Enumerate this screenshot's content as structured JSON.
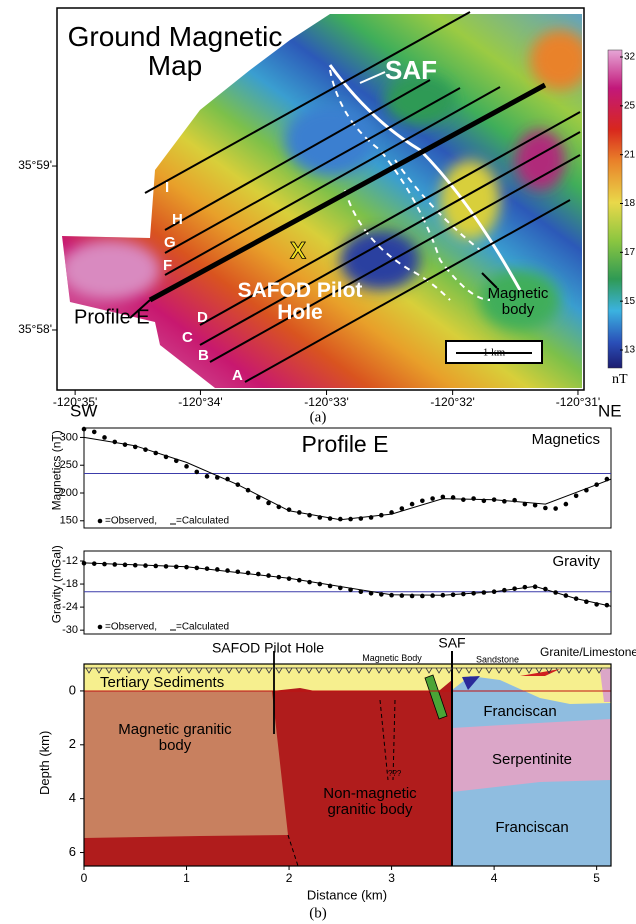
{
  "chart_data": [
    {
      "type": "map",
      "title": "Ground Magnetic Map",
      "xlim": [
        -120.5857,
        -120.5159
      ],
      "xticks": [
        {
          "value": -120.5833,
          "label": "-120°35'"
        },
        {
          "value": -120.5667,
          "label": "-120°34'"
        },
        {
          "value": -120.55,
          "label": "-120°33'"
        },
        {
          "value": -120.5333,
          "label": "-120°32'"
        },
        {
          "value": -120.5167,
          "label": "-120°31'"
        }
      ],
      "ylim": [
        35.96057,
        35.99939
      ],
      "yticks": [
        {
          "value": 35.98333,
          "label": "35°59'"
        },
        {
          "value": 35.96667,
          "label": "35°58'"
        }
      ],
      "colorbar": {
        "ticks": [
          32,
          25,
          21,
          18,
          17,
          15,
          13
        ],
        "unit": "nT"
      },
      "profile_labels": [
        "A",
        "B",
        "C",
        "D",
        "F",
        "G",
        "H",
        "I"
      ],
      "annotations": {
        "saf": "SAF",
        "marker": "X",
        "pilot_hole": "SAFOD Pilot Hole",
        "magnetic_body": "Magnetic body",
        "profile_e": "Profile E"
      },
      "scale_bar": "1 km",
      "panel_label": "(a)"
    },
    {
      "type": "line",
      "title": "Profile E",
      "label": "Magnetics",
      "y_label": "Magnetics (nT)",
      "direction_labels": [
        "SW",
        "NE"
      ],
      "xlim": [
        0,
        5.14
      ],
      "ylim": [
        137,
        317
      ],
      "yticks": [
        150,
        200,
        250,
        300
      ],
      "reference_line": 235,
      "reference_color": "#3c3caa",
      "series": [
        {
          "name": "=Observed,",
          "color": "#000000",
          "style": "markers",
          "x": [
            0,
            0.1,
            0.2,
            0.3,
            0.4,
            0.5,
            0.6,
            0.7,
            0.8,
            0.9,
            1.0,
            1.1,
            1.2,
            1.3,
            1.4,
            1.5,
            1.6,
            1.7,
            1.8,
            1.9,
            2.0,
            2.1,
            2.2,
            2.3,
            2.4,
            2.5,
            2.6,
            2.7,
            2.8,
            2.9,
            3.0,
            3.1,
            3.2,
            3.3,
            3.4,
            3.5,
            3.6,
            3.7,
            3.8,
            3.9,
            4.0,
            4.1,
            4.2,
            4.3,
            4.4,
            4.5,
            4.6,
            4.7,
            4.8,
            4.9,
            5.0,
            5.1
          ],
          "values": [
            315,
            310,
            300,
            292,
            287,
            283,
            278,
            272,
            265,
            258,
            248,
            238,
            230,
            228,
            225,
            215,
            205,
            192,
            182,
            175,
            170,
            165,
            160,
            156,
            154,
            153,
            153,
            154,
            156,
            160,
            165,
            172,
            180,
            186,
            190,
            193,
            192,
            188,
            190,
            186,
            188,
            185,
            187,
            180,
            178,
            173,
            172,
            180,
            195,
            205,
            215,
            225
          ]
        },
        {
          "name": "=Calculated",
          "color": "#000000",
          "style": "line",
          "x": [
            0,
            0.5,
            1,
            1.5,
            2,
            2.5,
            3,
            3.5,
            4,
            4.5,
            5,
            5.14
          ],
          "values": [
            300,
            285,
            255,
            215,
            168,
            152,
            162,
            190,
            188,
            180,
            215,
            225
          ]
        }
      ]
    },
    {
      "type": "line",
      "label": "Gravity",
      "y_label": "Gravity (mGal)",
      "xlim": [
        0,
        5.14
      ],
      "ylim": [
        -31,
        -9.4
      ],
      "yticks": [
        -12,
        -18,
        -24,
        -30
      ],
      "reference_line": -20,
      "reference_color": "#3c3caa",
      "series": [
        {
          "name": "=Observed,",
          "color": "#000000",
          "style": "markers",
          "x": [
            0,
            0.1,
            0.2,
            0.3,
            0.4,
            0.5,
            0.6,
            0.7,
            0.8,
            0.9,
            1.0,
            1.1,
            1.2,
            1.3,
            1.4,
            1.5,
            1.6,
            1.7,
            1.8,
            1.9,
            2.0,
            2.1,
            2.2,
            2.3,
            2.4,
            2.5,
            2.6,
            2.7,
            2.8,
            2.9,
            3.0,
            3.1,
            3.2,
            3.3,
            3.4,
            3.5,
            3.6,
            3.7,
            3.8,
            3.9,
            4.0,
            4.1,
            4.2,
            4.3,
            4.4,
            4.5,
            4.6,
            4.7,
            4.8,
            4.9,
            5.0,
            5.1
          ],
          "values": [
            -12.6,
            -12.7,
            -12.8,
            -12.9,
            -13.0,
            -13.1,
            -13.2,
            -13.3,
            -13.4,
            -13.5,
            -13.6,
            -13.8,
            -14.0,
            -14.2,
            -14.5,
            -14.8,
            -15.1,
            -15.4,
            -15.8,
            -16.2,
            -16.6,
            -17.0,
            -17.5,
            -18.0,
            -18.5,
            -19.0,
            -19.5,
            -20.0,
            -20.4,
            -20.7,
            -20.9,
            -21.0,
            -21.1,
            -21.1,
            -21.0,
            -20.9,
            -20.8,
            -20.6,
            -20.4,
            -20.2,
            -20.0,
            -19.6,
            -19.2,
            -18.8,
            -18.7,
            -19.3,
            -20.2,
            -21.0,
            -21.8,
            -22.6,
            -23.3,
            -23.5
          ]
        },
        {
          "name": "=Calculated",
          "color": "#000000",
          "style": "line",
          "x": [
            0,
            1,
            2,
            3,
            3.5,
            4,
            4.4,
            4.8,
            5.14
          ],
          "values": [
            -12.5,
            -13.5,
            -16.5,
            -20.8,
            -20.9,
            -20.0,
            -18.6,
            -21.8,
            -23.8
          ]
        }
      ]
    },
    {
      "type": "section",
      "x_label": "Distance (km)",
      "y_label": "Depth (km)",
      "xlim": [
        0,
        5.14
      ],
      "xticks": [
        0,
        1,
        2,
        3,
        4,
        5
      ],
      "ylim": [
        -1.0,
        6.5
      ],
      "yticks": [
        0,
        2,
        4,
        6
      ],
      "units": {
        "tertiary": "Tertiary Sediments",
        "magnetic": "Magnetic granitic body",
        "nonmagnetic": "Non-magnetic granitic body",
        "franciscan_upper": "Franciscan",
        "serpentinite": "Serpentinite",
        "franciscan_lower": "Franciscan",
        "sandstone": "Sandstone",
        "granite": "Granite/Limestone"
      },
      "annotations": {
        "pilot_hole": "SAFOD Pilot Hole",
        "saf": "SAF",
        "magnetic_body": "Magnetic Body",
        "unknown": "???"
      },
      "panel_label": "(b)"
    }
  ]
}
